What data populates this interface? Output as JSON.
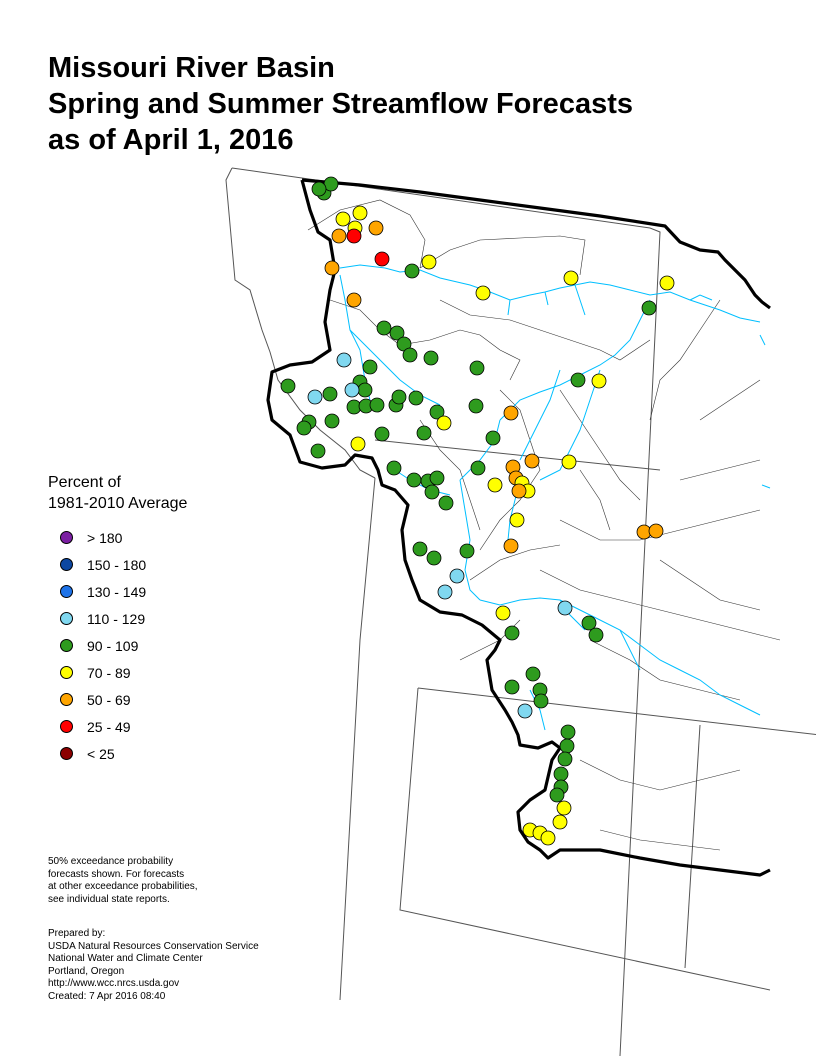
{
  "title": {
    "line1": "Missouri River Basin",
    "line2": "Spring and Summer Streamflow Forecasts",
    "line3": "as of April 1, 2016"
  },
  "legend": {
    "title_line1": "Percent of",
    "title_line2": "1981-2010 Average",
    "items": [
      {
        "label": "> 180",
        "color": "#7B1FA2"
      },
      {
        "label": "150 - 180",
        "color": "#0D47A1"
      },
      {
        "label": "130 - 149",
        "color": "#1E73E8"
      },
      {
        "label": "110 - 129",
        "color": "#80D8F0"
      },
      {
        "label": "90 - 109",
        "color": "#2E9B1E"
      },
      {
        "label": "70 - 89",
        "color": "#FFFF00"
      },
      {
        "label": "50 - 69",
        "color": "#FFA500"
      },
      {
        "label": "25 - 49",
        "color": "#FF0000"
      },
      {
        "label": "< 25",
        "color": "#8B0000"
      }
    ]
  },
  "note": {
    "lines": [
      "50% exceedance probability",
      "forecasts shown.  For forecasts",
      "at other exceedance probabilities,",
      "see individual state reports."
    ]
  },
  "credits": {
    "lines": [
      "Prepared by:",
      "USDA Natural Resources Conservation Service",
      "National Water and Climate Center",
      "Portland, Oregon",
      "http://www.wcc.nrcs.usda.gov",
      "Created:   7 Apr 2016   08:40"
    ]
  },
  "colors": {
    "river": "#00BFFF",
    "basin_boundary": "#000000",
    "state_boundary": "#555555",
    "sub_basin": "#333333"
  }
}
